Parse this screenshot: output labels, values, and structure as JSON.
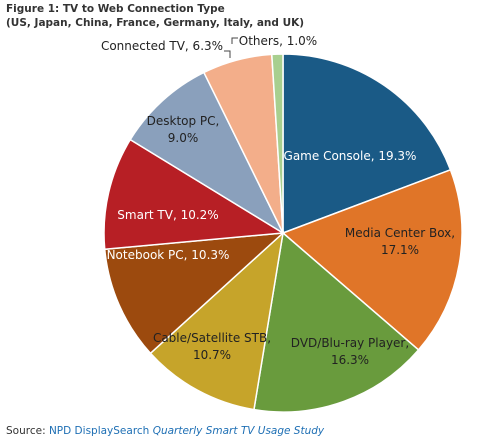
{
  "chart_data": {
    "type": "pie",
    "title": "Figure 1: TV to Web Connection Type",
    "subtitle": "(US, Japan, China, France, Germany, Italy, and UK)",
    "slices": [
      {
        "label": "Game Console",
        "value": 19.3,
        "display": "Game  Console, 19.3%",
        "color": "#1a5a86"
      },
      {
        "label": "Media Center Box",
        "value": 17.1,
        "display": "Media Center Box, 17.1%",
        "color": "#e07528"
      },
      {
        "label": "DVD/Blu-ray Player",
        "value": 16.3,
        "display": "DVD/Blu-ray  Player, 16.3%",
        "color": "#699b3d"
      },
      {
        "label": "Cable/Satellite STB",
        "value": 10.7,
        "display": "Cable/Satellite STB, 10.7%",
        "color": "#c6a42a"
      },
      {
        "label": "Notebook PC",
        "value": 10.3,
        "display": "Notebook PC, 10.3%",
        "color": "#9c4a0e"
      },
      {
        "label": "Smart TV",
        "value": 10.2,
        "display": "Smart  TV, 10.2%",
        "color": "#b71f25"
      },
      {
        "label": "Desktop PC",
        "value": 9.0,
        "display": "Desktop PC, 9.0%",
        "color": "#8aa0bc"
      },
      {
        "label": "Connected TV",
        "value": 6.3,
        "display": "Connected TV, 6.3%",
        "color": "#f3ae8a"
      },
      {
        "label": "Others",
        "value": 1.0,
        "display": "Others, 1.0%",
        "color": "#a8cf8f"
      }
    ]
  },
  "source": {
    "prefix": "Source:",
    "org": "NPD DisplaySearch",
    "study": "Quarterly Smart TV Usage Study"
  }
}
